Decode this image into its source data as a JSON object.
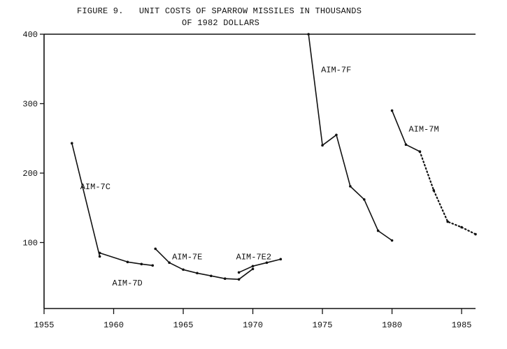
{
  "figure": {
    "number": "FIGURE 9.",
    "title_line1": "UNIT COSTS OF SPARROW MISSILES IN THOUSANDS",
    "title_line2": "OF 1982 DOLLARS"
  },
  "chart_data": {
    "type": "line",
    "title": "UNIT COSTS OF SPARROW MISSILES IN THOUSANDS OF 1982 DOLLARS",
    "xlabel": "",
    "ylabel": "",
    "xlim": [
      1955,
      1986
    ],
    "ylim": [
      5,
      400
    ],
    "x_ticks": [
      1955,
      1960,
      1965,
      1970,
      1975,
      1980,
      1985
    ],
    "y_ticks": [
      100,
      200,
      300,
      400
    ],
    "grid": false,
    "series": [
      {
        "name": "AIM-7C",
        "style": "solid",
        "points": [
          [
            1957,
            243
          ],
          [
            1959,
            80
          ]
        ]
      },
      {
        "name": "AIM-7D",
        "style": "solid",
        "points": [
          [
            1959,
            85
          ],
          [
            1961,
            72
          ],
          [
            1962,
            69
          ],
          [
            1962.8,
            67
          ]
        ]
      },
      {
        "name": "AIM-7E",
        "style": "solid",
        "points": [
          [
            1963,
            91
          ],
          [
            1964,
            71
          ],
          [
            1965,
            61
          ],
          [
            1966,
            56
          ],
          [
            1967,
            52
          ],
          [
            1968,
            48
          ],
          [
            1969,
            47
          ],
          [
            1970,
            62
          ]
        ]
      },
      {
        "name": "AIM-7E2",
        "style": "solid",
        "points": [
          [
            1969,
            57
          ],
          [
            1970,
            66
          ],
          [
            1971,
            71
          ],
          [
            1972,
            76
          ]
        ]
      },
      {
        "name": "AIM-7F",
        "style": "solid",
        "points": [
          [
            1974,
            400
          ],
          [
            1975,
            240
          ],
          [
            1976,
            255
          ],
          [
            1977,
            181
          ],
          [
            1978,
            162
          ],
          [
            1979,
            117
          ],
          [
            1980,
            103
          ]
        ]
      },
      {
        "name": "AIM-7M",
        "style": "solid",
        "points": [
          [
            1980,
            290
          ],
          [
            1981,
            241
          ],
          [
            1982,
            231
          ]
        ]
      },
      {
        "name": "",
        "style": "dotted",
        "points": [
          [
            1982,
            231
          ],
          [
            1983,
            175
          ],
          [
            1984,
            130
          ],
          [
            1985,
            122
          ],
          [
            1986,
            112
          ]
        ]
      }
    ],
    "annotations": [
      {
        "text": "AIM-7C",
        "x": 1957.6,
        "y": 177
      },
      {
        "text": "AIM-7D",
        "x": 1959.9,
        "y": 38
      },
      {
        "text": "AIM-7E",
        "x": 1964.2,
        "y": 76
      },
      {
        "text": "AIM-7E2",
        "x": 1968.8,
        "y": 76
      },
      {
        "text": "AIM-7F",
        "x": 1974.9,
        "y": 345
      },
      {
        "text": "AIM-7M",
        "x": 1981.2,
        "y": 260
      }
    ]
  }
}
